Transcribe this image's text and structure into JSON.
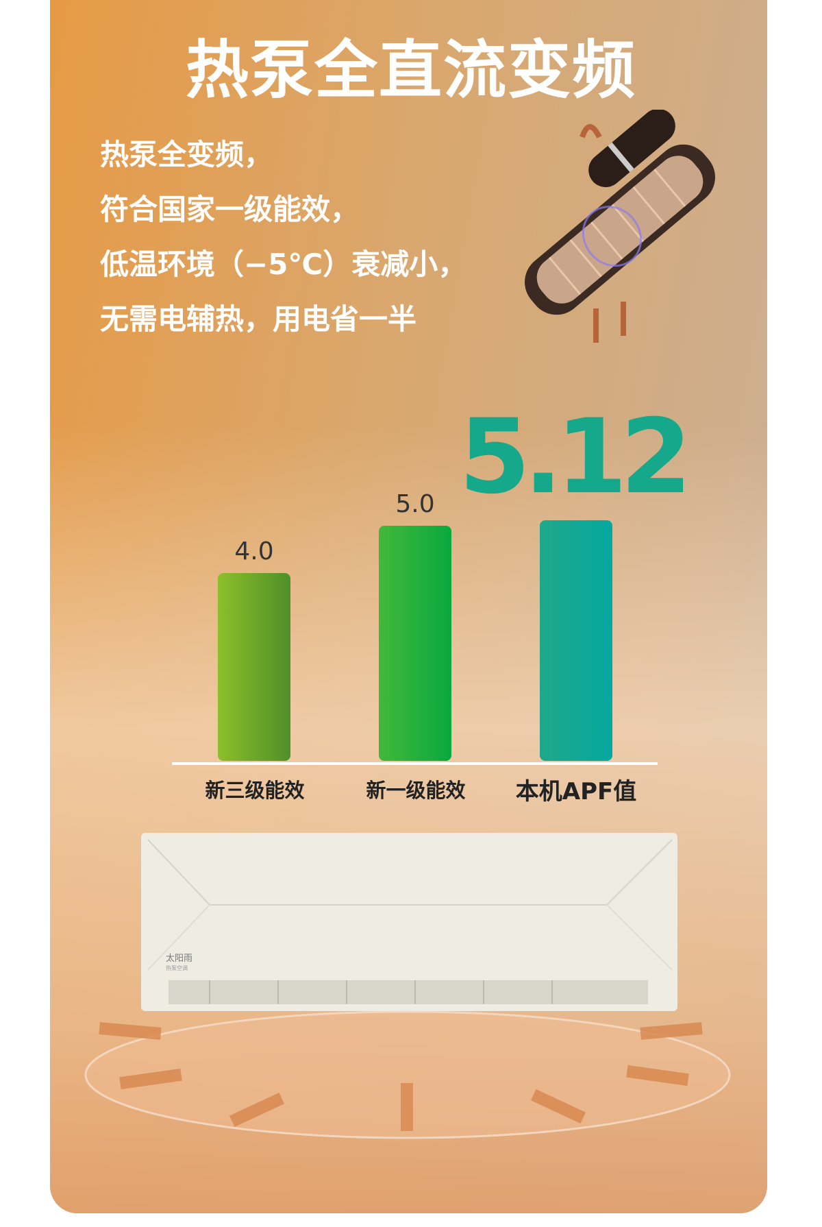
{
  "title": "热泵全直流变频",
  "description_lines": [
    "热泵全变频，",
    "符合国家一级能效，",
    "低温环境（−5℃）衰减小，",
    "无需电辅热，用电省一半"
  ],
  "highlight_value": "5.12",
  "brand_logo_text": "太阳雨 热泵空调",
  "chart_data": {
    "type": "bar",
    "categories": [
      "新三级能效",
      "新一级能效",
      "本机APF值"
    ],
    "values": [
      4.0,
      5.0,
      5.12
    ],
    "value_labels": [
      "4.0",
      "5.0",
      "5.12"
    ],
    "colors": [
      [
        "#8cbf2a",
        "#4f8f2a"
      ],
      [
        "#43b83a",
        "#0aa83f"
      ],
      [
        "#1fa889",
        "#05a8a0"
      ]
    ],
    "ylim": [
      0,
      5.2
    ]
  }
}
